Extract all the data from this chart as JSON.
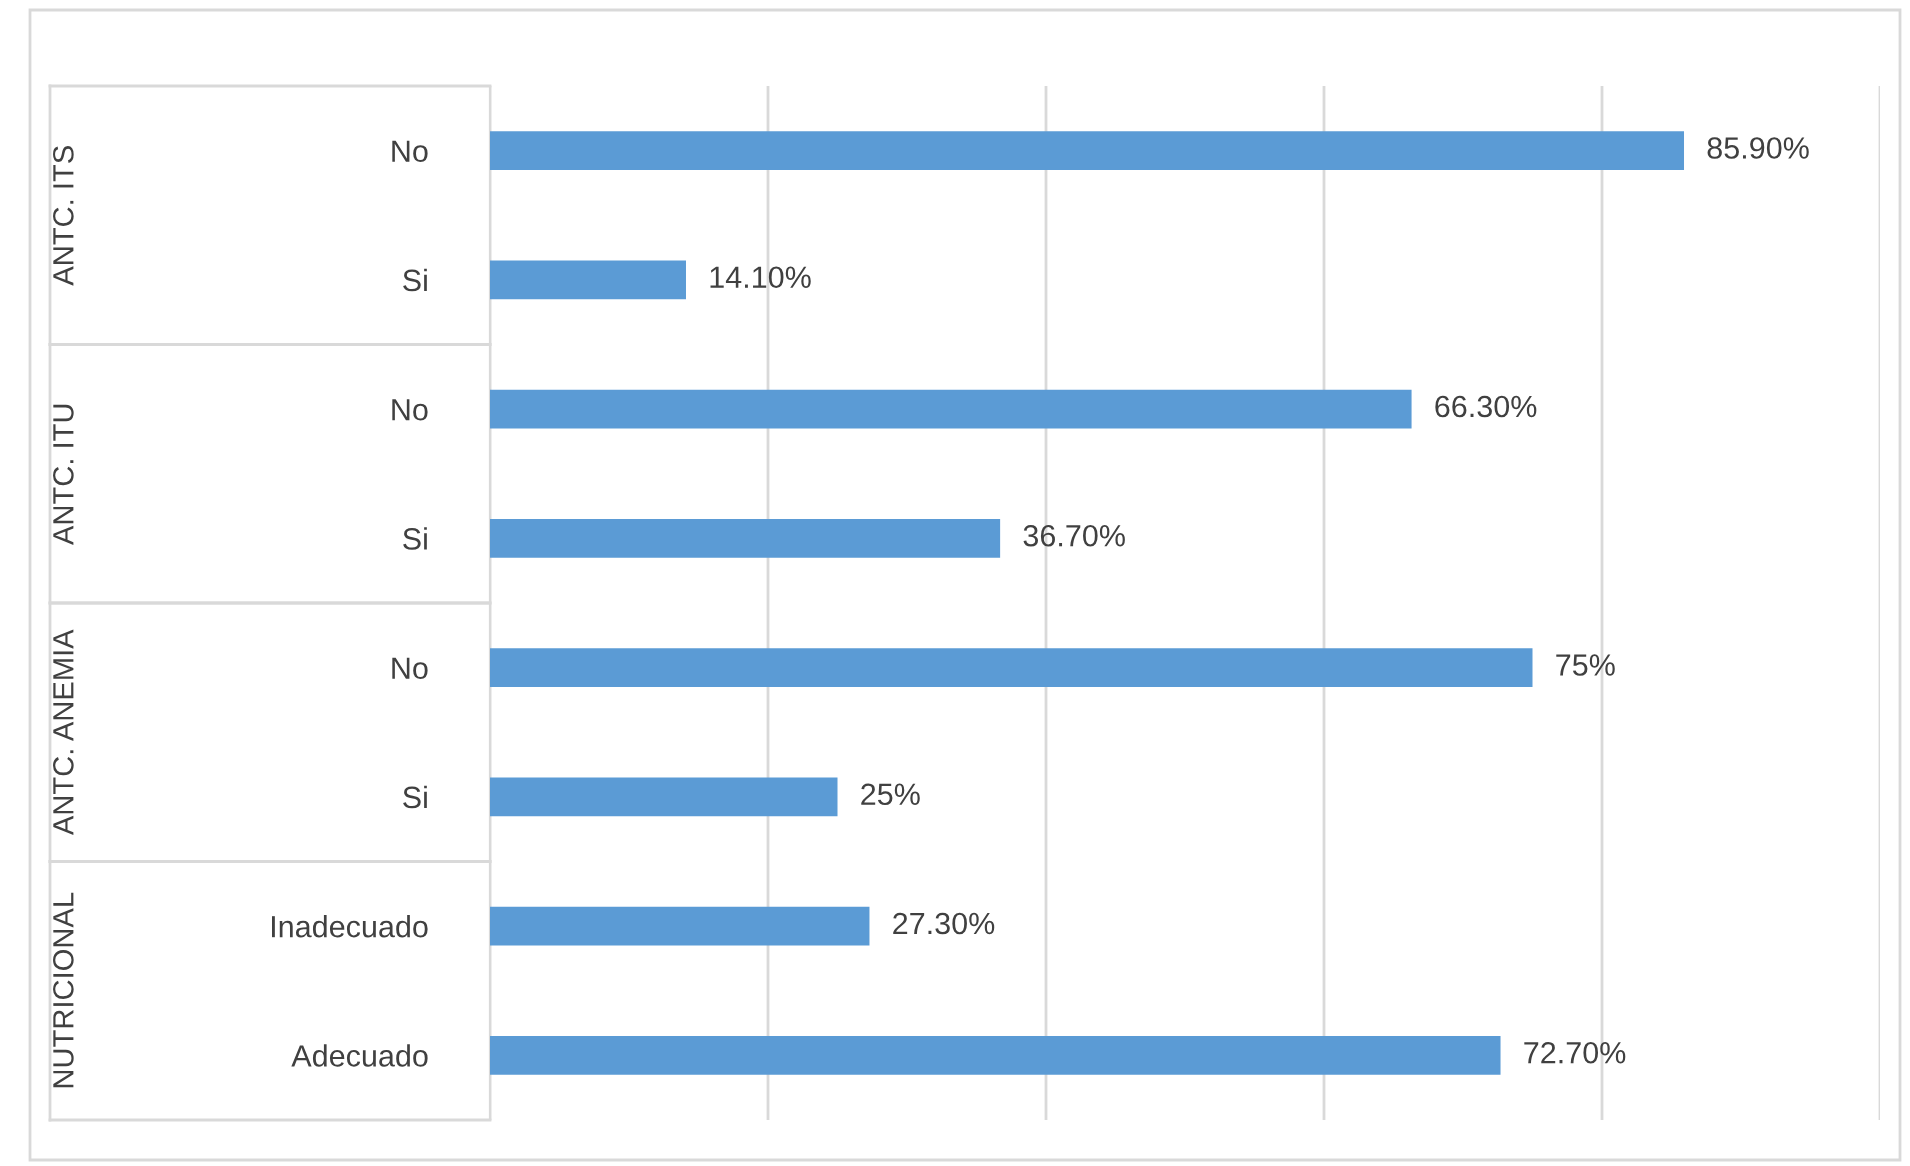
{
  "chart_data": {
    "type": "bar",
    "orientation": "horizontal",
    "categories": [
      "No",
      "Si",
      "No",
      "Si",
      "No",
      "Si",
      "Inadecuado",
      "Adecuado"
    ],
    "values": [
      85.9,
      14.1,
      66.3,
      36.7,
      75,
      25,
      27.3,
      72.7
    ],
    "value_labels": [
      "85.90%",
      "14.10%",
      "66.30%",
      "36.70%",
      "75%",
      "25%",
      "27.30%",
      "72.70%"
    ],
    "color": "#5b9bd5",
    "xlim": [
      0,
      100
    ],
    "xticks": [
      {
        "value": 0,
        "label": null
      },
      {
        "value": 20,
        "label": null
      },
      {
        "value": 40,
        "label": null
      },
      {
        "value": 60,
        "label": null
      },
      {
        "value": 80,
        "label": null
      },
      {
        "value": 100,
        "label": null
      }
    ],
    "tick_labels": "y",
    "grid": "x",
    "annotations": [
      "ANTC. ITS",
      "ANTC. ITU",
      "ANTC. ANEMIA",
      "NUTRICIONAL"
    ]
  }
}
